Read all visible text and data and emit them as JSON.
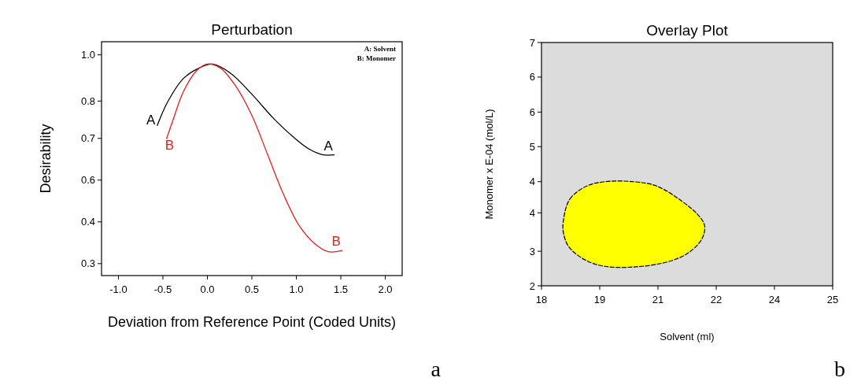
{
  "chart_data": [
    {
      "type": "line",
      "title": "Perturbation",
      "xlabel": "Deviation from Reference Point (Coded Units)",
      "ylabel": "Desirability",
      "xlim": [
        -1.19,
        2.19
      ],
      "ylim": [
        0.26,
        1.044
      ],
      "xticks": [
        {
          "value": -1,
          "label": "-1.0"
        },
        -0.5,
        {
          "value": 0,
          "label": "0.0"
        },
        0.5,
        {
          "value": 1,
          "label": "1.0"
        },
        1.5,
        {
          "value": 2,
          "label": "2.0"
        }
      ],
      "yticks": [
        {
          "value": 1.0,
          "label": "1.0"
        },
        {
          "value": 0.845,
          "label": "0.8"
        },
        {
          "value": 0.72,
          "label": "0.7"
        },
        {
          "value": 0.58,
          "label": "0.6"
        },
        {
          "value": 0.44,
          "label": "0.4"
        },
        {
          "value": 0.3,
          "label": "0.3"
        }
      ],
      "series": [
        {
          "name": "A",
          "color": "#000000",
          "x": [
            -0.565,
            -0.447,
            -0.269,
            -0.092,
            0.056,
            0.263,
            0.5,
            0.737,
            0.973,
            1.15,
            1.3,
            1.43
          ],
          "values": [
            0.762,
            0.842,
            0.921,
            0.956,
            0.969,
            0.938,
            0.868,
            0.789,
            0.723,
            0.683,
            0.665,
            0.665
          ]
        },
        {
          "name": "B",
          "color": "#e02020",
          "x": [
            -0.46,
            -0.388,
            -0.269,
            -0.121,
            -0.003,
            0.145,
            0.322,
            0.5,
            0.678,
            0.855,
            1.033,
            1.21,
            1.358,
            1.52
          ],
          "values": [
            0.718,
            0.78,
            0.877,
            0.947,
            0.969,
            0.956,
            0.894,
            0.797,
            0.665,
            0.533,
            0.427,
            0.366,
            0.34,
            0.344
          ]
        }
      ],
      "annotations": [
        "A: Solvent",
        "B: Monomer",
        "a"
      ]
    },
    {
      "type": "area",
      "title": "Overlay Plot",
      "xlabel": "Solvent (ml)",
      "ylabel": "Monomer x E-04 (mol/L)",
      "xlim": [
        18,
        25
      ],
      "ylim": [
        2,
        7
      ],
      "xticks": [
        18,
        {
          "value": 19.4,
          "label": "19"
        },
        {
          "value": 20.8,
          "label": "21"
        },
        {
          "value": 22.2,
          "label": "22"
        },
        {
          "value": 23.6,
          "label": "24"
        },
        25
      ],
      "yticks": [
        2,
        {
          "value": 2.71,
          "label": "3"
        },
        {
          "value": 3.5,
          "label": "4"
        },
        {
          "value": 4.14,
          "label": "4"
        },
        {
          "value": 4.86,
          "label": "5"
        },
        {
          "value": 5.57,
          "label": "6"
        },
        {
          "value": 6.29,
          "label": "6"
        },
        7
      ],
      "series": [
        {
          "color": "#ffff00",
          "x": [
            18.52,
            18.68,
            19.09,
            19.52,
            20.21,
            20.77,
            21.39,
            21.76,
            21.92,
            21.86,
            21.52,
            21.02,
            20.27,
            19.52,
            19.03,
            18.65,
            18.53
          ],
          "values": [
            3.29,
            3.78,
            4.05,
            4.14,
            4.14,
            4.05,
            3.73,
            3.46,
            3.24,
            2.97,
            2.67,
            2.49,
            2.39,
            2.4,
            2.54,
            2.81,
            3.08
          ]
        }
      ],
      "annotations": [
        "b"
      ]
    }
  ]
}
